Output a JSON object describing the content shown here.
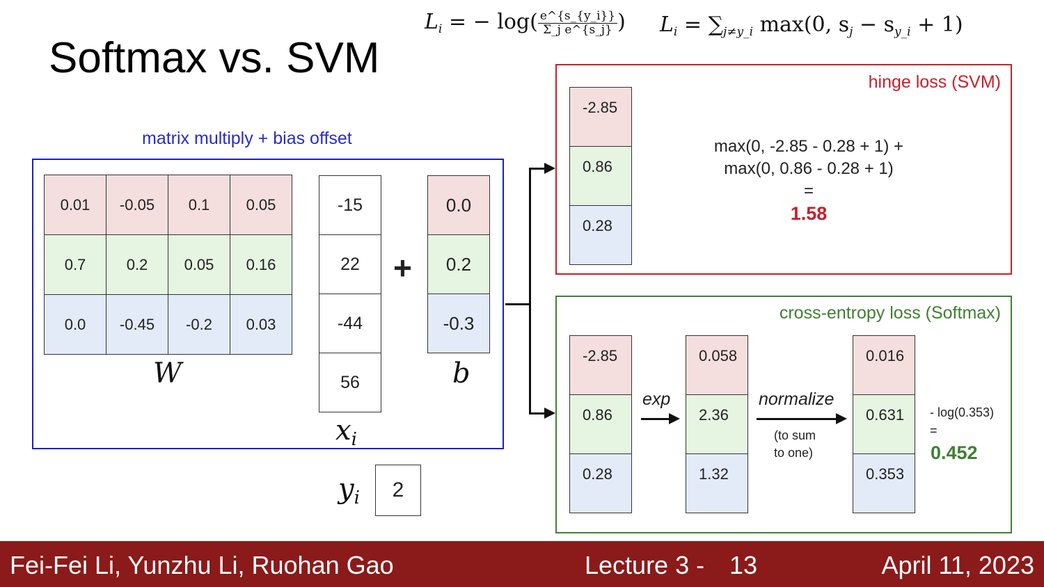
{
  "slide": {
    "title": "Softmax vs. SVM",
    "formula_softmax": {
      "lhs": "L",
      "lhs_sub": "i",
      "eq": " = − log(",
      "numerator": "e^{s_{y_i}}",
      "denominator": "Σ_j e^{s_j}",
      "close": ")"
    },
    "formula_svm": {
      "lhs": "L",
      "lhs_sub": "i",
      "eq": " = ∑",
      "sum_sub": "j≠y_i",
      "body": " max(0, s",
      "s_sub": "j",
      "minus": " − s",
      "sy_sub": "y_i",
      "tail": " + 1)"
    }
  },
  "linear": {
    "label": "matrix multiply + bias offset",
    "W": {
      "name": "W",
      "rows": [
        [
          "0.01",
          "-0.05",
          "0.1",
          "0.05"
        ],
        [
          "0.7",
          "0.2",
          "0.05",
          "0.16"
        ],
        [
          "0.0",
          "-0.45",
          "-0.2",
          "0.03"
        ]
      ]
    },
    "x": {
      "name": "x",
      "sub": "i",
      "values": [
        "-15",
        "22",
        "-44",
        "56"
      ]
    },
    "plus": "+",
    "b": {
      "name": "b",
      "values": [
        "0.0",
        "0.2",
        "-0.3"
      ]
    },
    "y": {
      "name": "y",
      "sub": "i",
      "value": "2"
    }
  },
  "svm": {
    "label": "hinge loss (SVM)",
    "scores": [
      "-2.85",
      "0.86",
      "0.28"
    ],
    "calc_line1": "max(0, -2.85 - 0.28 + 1) +",
    "calc_line2": "max(0, 0.86 - 0.28 + 1)",
    "calc_eq": "=",
    "result": "1.58"
  },
  "softmax": {
    "label": "cross-entropy loss (Softmax)",
    "scores": [
      "-2.85",
      "0.86",
      "0.28"
    ],
    "exp_label": "exp",
    "exp_values": [
      "0.058",
      "2.36",
      "1.32"
    ],
    "normalize_label": "normalize",
    "normalize_note_1": "(to sum",
    "normalize_note_2": "to one)",
    "probs": [
      "0.016",
      "0.631",
      "0.353"
    ],
    "calc_line1": "- log(0.353)",
    "calc_eq": "=",
    "result": "0.452"
  },
  "footer": {
    "authors": "Fei-Fei Li, Yunzhu Li, Ruohan Gao",
    "lecture": "Lecture 3 -",
    "page": "13",
    "date": "April 11, 2023"
  },
  "colors": {
    "blue_box": "#1a1fc9",
    "red_box": "#c8202a",
    "green_box": "#3f8032",
    "row_red": "#f5dede",
    "row_green": "#e6f4e2",
    "row_blue": "#e3ebf8",
    "footer_bg": "#8b1a1a"
  }
}
